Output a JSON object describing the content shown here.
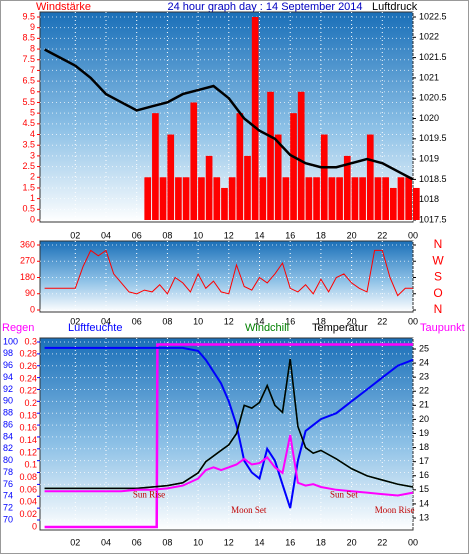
{
  "chart_data": [
    {
      "type": "bar_line",
      "title": "24 hour graph day : 14 September 2014",
      "ylabel": "Windstärke",
      "y2label": "Luftdruck",
      "xlim": [
        -0.3,
        24
      ],
      "xticks": [
        {
          "value": 2,
          "label": "02"
        },
        {
          "value": 4,
          "label": "04"
        },
        {
          "value": 6,
          "label": "06"
        },
        {
          "value": 8,
          "label": "08"
        },
        10,
        12,
        14,
        16,
        18,
        20,
        22,
        {
          "value": 24,
          "label": "00"
        }
      ],
      "ylim": [
        0,
        9.5
      ],
      "yticks": [
        0,
        0.5,
        1,
        1.5,
        2,
        2.5,
        3,
        3.5,
        4,
        4.5,
        5,
        5.5,
        6,
        6.5,
        7,
        7.5,
        8,
        8.5,
        9,
        9.5
      ],
      "y2lim": [
        1017.5,
        1022.5
      ],
      "y2ticks": [
        1017.5,
        1018,
        1018.5,
        1019,
        1019.5,
        1020,
        1020.5,
        1021,
        1021.5,
        1022,
        1022.5
      ],
      "grid": true,
      "series": [
        {
          "name": "Windstärke",
          "type": "bar",
          "color": "#ff0000",
          "axis": "y",
          "x": [
            0,
            0.5,
            1,
            1.5,
            2,
            2.5,
            3,
            3.5,
            4,
            4.5,
            5,
            5.5,
            6,
            6.5,
            7,
            7.5,
            8,
            8.5,
            9,
            9.5,
            10,
            10.5,
            11,
            11.5,
            12,
            12.5,
            13,
            13.5,
            14,
            14.5,
            15,
            15.5,
            16,
            16.5,
            17,
            17.5,
            18,
            18.5,
            19,
            19.5,
            20,
            20.5,
            21,
            21.5,
            22,
            22.5,
            23,
            23.5,
            24
          ],
          "values": [
            0,
            0,
            0,
            0,
            0,
            0,
            0,
            0,
            0,
            0,
            0,
            0,
            0,
            2,
            5,
            2,
            4,
            2,
            2,
            5.5,
            2,
            3,
            2,
            1.5,
            2,
            5,
            3,
            9.5,
            2,
            6,
            4,
            2,
            5,
            6,
            2,
            2,
            4,
            2,
            2,
            3,
            2,
            2,
            4,
            2,
            2,
            1.5,
            2,
            2,
            1.5
          ]
        },
        {
          "name": "Luftdruck",
          "type": "line",
          "color": "#000000",
          "axis": "y2",
          "x": [
            0,
            1,
            2,
            3,
            4,
            5,
            6,
            7,
            8,
            9,
            10,
            11,
            12,
            13,
            14,
            15,
            16,
            17,
            18,
            19,
            20,
            21,
            22,
            23,
            24
          ],
          "values": [
            1021.7,
            1021.5,
            1021.3,
            1021.0,
            1020.6,
            1020.4,
            1020.2,
            1020.3,
            1020.4,
            1020.6,
            1020.7,
            1020.8,
            1020.5,
            1020.0,
            1019.7,
            1019.5,
            1019.1,
            1018.9,
            1018.8,
            1018.8,
            1018.9,
            1019.0,
            1018.9,
            1018.7,
            1018.5
          ]
        }
      ]
    },
    {
      "type": "line",
      "xlim": [
        -0.3,
        24
      ],
      "xticks": [
        {
          "value": 2,
          "label": "02"
        },
        {
          "value": 4,
          "label": "04"
        },
        {
          "value": 6,
          "label": "06"
        },
        {
          "value": 8,
          "label": "08"
        },
        10,
        12,
        14,
        16,
        18,
        20,
        22,
        {
          "value": 24,
          "label": "00"
        }
      ],
      "ylim": [
        0,
        360
      ],
      "yticks": [
        0,
        90,
        180,
        270,
        360
      ],
      "y2lim": [
        0,
        360
      ],
      "y2ticks": [
        {
          "value": 360,
          "label": "N"
        },
        {
          "value": 270,
          "label": "W"
        },
        {
          "value": 180,
          "label": "S"
        },
        {
          "value": 90,
          "label": "O"
        },
        {
          "value": 0,
          "label": "N"
        }
      ],
      "grid": true,
      "series": [
        {
          "type": "line",
          "color": "#ff0000",
          "axis": "y",
          "x": [
            0,
            0.5,
            1,
            1.5,
            2,
            2.5,
            3,
            3.5,
            4,
            4.5,
            5,
            5.5,
            6,
            6.5,
            7,
            7.5,
            8,
            8.5,
            9,
            9.5,
            10,
            10.5,
            11,
            11.5,
            12,
            12.5,
            13,
            13.5,
            14,
            14.5,
            15,
            15.5,
            16,
            16.5,
            17,
            17.5,
            18,
            18.5,
            19,
            19.5,
            20,
            20.5,
            21,
            21.5,
            22,
            22.5,
            23,
            23.5,
            24
          ],
          "values": [
            120,
            120,
            120,
            120,
            120,
            240,
            330,
            300,
            330,
            200,
            150,
            100,
            90,
            110,
            100,
            140,
            90,
            180,
            150,
            100,
            200,
            120,
            160,
            100,
            90,
            250,
            130,
            110,
            180,
            150,
            200,
            260,
            120,
            100,
            140,
            90,
            170,
            100,
            180,
            200,
            150,
            120,
            100,
            330,
            330,
            180,
            80,
            120,
            120
          ]
        }
      ]
    },
    {
      "type": "line",
      "xlim": [
        -0.3,
        24
      ],
      "xticks": [
        {
          "value": 2,
          "label": "02"
        },
        {
          "value": 4,
          "label": "04"
        },
        {
          "value": 6,
          "label": "06"
        },
        {
          "value": 8,
          "label": "08"
        },
        10,
        12,
        14,
        16,
        18,
        20,
        22,
        {
          "value": 24,
          "label": "00"
        }
      ],
      "ylabel": "Luftfeuchte",
      "ylim": [
        70,
        100
      ],
      "yticks": [
        70,
        72,
        74,
        76,
        78,
        80,
        82,
        84,
        86,
        88,
        90,
        92,
        94,
        96,
        98,
        100
      ],
      "y3label": "Regen",
      "y3lim": [
        0,
        0.3
      ],
      "y3ticks": [
        0,
        0.02,
        0.04,
        0.06,
        0.08,
        0.1,
        0.12,
        0.14,
        0.16,
        0.18,
        0.2,
        0.22,
        0.24,
        0.26,
        0.28,
        0.3
      ],
      "y2lim": [
        13,
        25
      ],
      "y2ticks": [
        13,
        14,
        15,
        16,
        17,
        18,
        19,
        20,
        21,
        22,
        23,
        24,
        25
      ],
      "grid": true,
      "x": [
        0,
        1,
        2,
        3,
        4,
        5,
        6,
        7,
        8,
        9,
        10,
        10.5,
        11,
        11.5,
        12,
        12.5,
        13,
        13.5,
        14,
        14.5,
        15,
        15.5,
        16,
        16.5,
        17,
        17.5,
        18,
        19,
        20,
        21,
        22,
        23,
        24
      ],
      "series": [
        {
          "name": "Regen",
          "color": "#ff00ff",
          "axis": "y3",
          "width": 2.5,
          "x": [
            0,
            7.3,
            7.35,
            24
          ],
          "values": [
            0,
            0,
            0.296,
            0.296
          ]
        },
        {
          "name": "Luftfeuchte",
          "color": "#0000ff",
          "axis": "y",
          "width": 2,
          "values": [
            99,
            99,
            99,
            99,
            99,
            99,
            99,
            99,
            99,
            99,
            98.5,
            97,
            95,
            93,
            90,
            86,
            80,
            78,
            77,
            82,
            80,
            76,
            72,
            80,
            85,
            86,
            87,
            88,
            90,
            92,
            94,
            96,
            97
          ]
        },
        {
          "name": "Windchill",
          "color": "#008000",
          "axis": "y2",
          "width": 1.5,
          "values": [
            15.1,
            15.1,
            15.1,
            15.1,
            15.1,
            15.1,
            15.1,
            15.2,
            15.3,
            15.5,
            16.2,
            17.0,
            17.4,
            17.8,
            18.2,
            19.0,
            21.0,
            20.8,
            21.2,
            22.4,
            21.0,
            20.5,
            24.3,
            19.5,
            18.0,
            17.6,
            17.8,
            17.2,
            16.5,
            16.0,
            15.7,
            15.4,
            15.2
          ]
        },
        {
          "name": "Temperatur",
          "color": "#000000",
          "axis": "y2",
          "width": 1.5,
          "values": [
            15.1,
            15.1,
            15.1,
            15.1,
            15.1,
            15.1,
            15.1,
            15.2,
            15.3,
            15.5,
            16.2,
            17.0,
            17.4,
            17.8,
            18.2,
            19.0,
            21.0,
            20.8,
            21.2,
            22.4,
            21.0,
            20.5,
            24.3,
            19.5,
            18.0,
            17.6,
            17.8,
            17.2,
            16.5,
            16.0,
            15.7,
            15.4,
            15.2
          ]
        },
        {
          "name": "Taupunkt",
          "color": "#ff00ff",
          "axis": "y2",
          "width": 2,
          "values": [
            14.9,
            14.9,
            14.9,
            14.9,
            14.9,
            14.9,
            15.0,
            15.0,
            15.1,
            15.3,
            15.8,
            16.4,
            16.6,
            16.4,
            16.6,
            16.8,
            17.2,
            16.8,
            16.9,
            17.3,
            16.6,
            16.2,
            18.9,
            15.5,
            15.3,
            15.4,
            15.2,
            15.0,
            14.9,
            14.8,
            14.7,
            14.6,
            14.8
          ]
        }
      ],
      "annotations": [
        {
          "text": "Sun Rise",
          "x": 6.8,
          "y": 14.6
        },
        {
          "text": "Moon Set",
          "x": 13.3,
          "y": 13.5
        },
        {
          "text": "Sun Set",
          "x": 19.5,
          "y": 14.6
        },
        {
          "text": "Moon Rise",
          "x": 22.8,
          "y": 13.5
        }
      ]
    }
  ]
}
